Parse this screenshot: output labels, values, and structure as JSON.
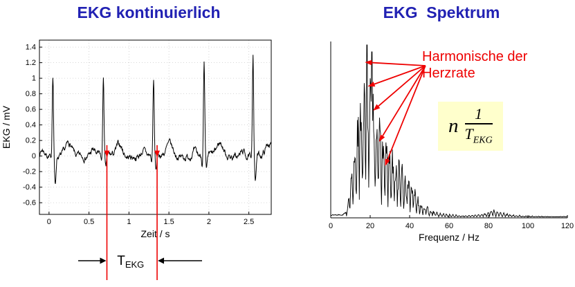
{
  "titles": {
    "left": "EKG kontinuierlich",
    "right": "EKG  Spektrum"
  },
  "colors": {
    "title": "#2121b3",
    "red": "#ee0000",
    "trace": "#000000",
    "grid": "#c9c9c9",
    "formula_bg": "#ffffcc"
  },
  "annotations": {
    "t_ekg": {
      "main": "T",
      "sub": "EKG"
    },
    "harmonics": {
      "line1": "Harmonische der",
      "line2": "Herzrate"
    },
    "formula": {
      "factor": "n",
      "numerator": "1",
      "den_main": "T",
      "den_sub": "EKG"
    }
  },
  "chart_data": [
    {
      "type": "line",
      "id": "ekg_time",
      "title": "EKG kontinuierlich",
      "xlabel": "Zeit / s",
      "ylabel": "EKG / mV",
      "xlim": [
        -0.12,
        2.78
      ],
      "ylim": [
        -0.75,
        1.49
      ],
      "xticks": [
        0,
        0.5,
        1,
        1.5,
        2,
        2.5
      ],
      "yticks": [
        -0.6,
        -0.4,
        -0.2,
        0,
        0.2,
        0.4,
        0.6,
        0.8,
        1,
        1.2,
        1.4
      ],
      "grid": true,
      "series_desc": "continuous ECG trace, 5 heartbeats with baseline noise of about 0.03 mV",
      "beats": {
        "times": [
          0.048,
          0.68,
          1.308,
          1.94,
          2.552
        ],
        "r_amp": [
          1.05,
          0.98,
          0.95,
          1.18,
          1.32
        ],
        "s_amp": [
          -0.38,
          -0.18,
          -0.18,
          -0.22,
          -0.32
        ],
        "t_amp": [
          0.17,
          0.15,
          0.15,
          0.16,
          0.15
        ]
      },
      "period_markers": {
        "x": [
          0.724,
          1.352
        ],
        "label": "T_EKG"
      }
    },
    {
      "type": "line",
      "id": "ekg_spectrum",
      "title": "EKG Spektrum",
      "xlabel": "Frequenz / Hz",
      "ylabel": "",
      "xlim": [
        0,
        120
      ],
      "ylim": [
        0,
        1.02
      ],
      "xticks": [
        0,
        20,
        40,
        60,
        80,
        100,
        120
      ],
      "grid": false,
      "series_desc": "noisy amplitude spectrum of the ECG; spectral lines are harmonics of the heart rate n/T_EKG, main lobe 10-45 Hz peaking near 18 Hz, small bump near 80-85 Hz",
      "envelope": [
        [
          0,
          0.02
        ],
        [
          6,
          0.02
        ],
        [
          8,
          0.04
        ],
        [
          10,
          0.22
        ],
        [
          12,
          0.5
        ],
        [
          13,
          0.62
        ],
        [
          15,
          0.8
        ],
        [
          17,
          0.95
        ],
        [
          18.4,
          1.0
        ],
        [
          20,
          0.88
        ],
        [
          21,
          0.92
        ],
        [
          23,
          0.78
        ],
        [
          25,
          0.62
        ],
        [
          27,
          0.55
        ],
        [
          29,
          0.48
        ],
        [
          31,
          0.42
        ],
        [
          34,
          0.38
        ],
        [
          37,
          0.3
        ],
        [
          40,
          0.28
        ],
        [
          43,
          0.17
        ],
        [
          46,
          0.1
        ],
        [
          50,
          0.06
        ],
        [
          55,
          0.03
        ],
        [
          62,
          0.02
        ],
        [
          70,
          0.015
        ],
        [
          78,
          0.03
        ],
        [
          82,
          0.055
        ],
        [
          86,
          0.035
        ],
        [
          92,
          0.02
        ],
        [
          100,
          0.012
        ],
        [
          110,
          0.01
        ],
        [
          120,
          0.01
        ]
      ],
      "arrow_origin": [
        48,
        0.88
      ],
      "arrow_targets": [
        [
          17.3,
          0.9
        ],
        [
          18.8,
          0.76
        ],
        [
          21.5,
          0.62
        ],
        [
          24.5,
          0.44
        ],
        [
          27.5,
          0.3
        ]
      ]
    }
  ]
}
